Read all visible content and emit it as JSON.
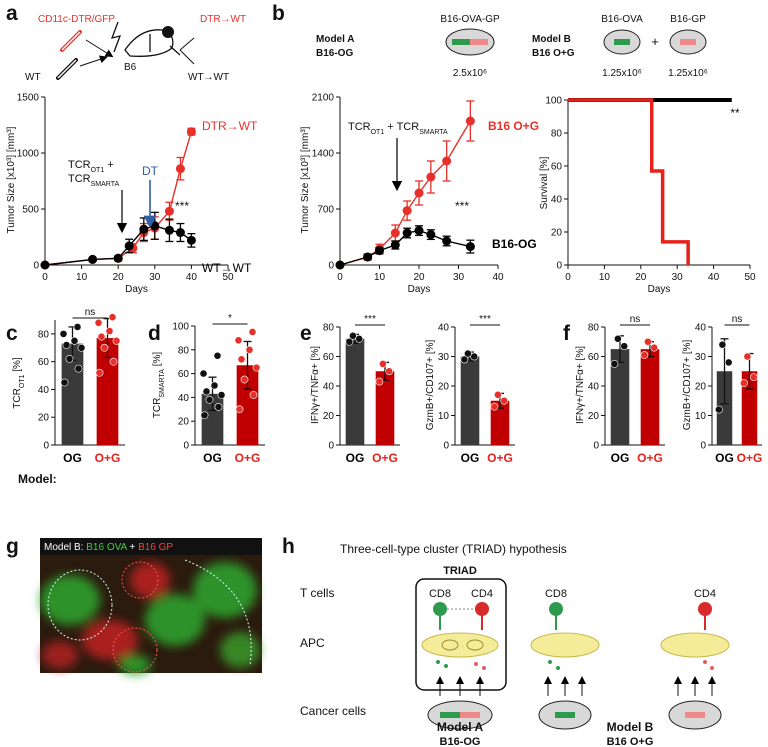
{
  "panel_labels": [
    "a",
    "b",
    "c",
    "d",
    "e",
    "f",
    "g",
    "h"
  ],
  "a_diagram": {
    "donor": "CD11c-DTR/GFP",
    "group1": "DTR→WT",
    "wt": "WT",
    "host": "B6",
    "group2": "WT→WT"
  },
  "b_diagram": {
    "model_a": "Model A",
    "model_a_line": "B16-OG",
    "model_a_cells": "B16-OVA-GP",
    "model_a_dose": "2.5x10⁶",
    "model_b": "Model B",
    "model_b_line": "B16 O+G",
    "model_b_cells1": "B16-OVA",
    "plus": "+",
    "model_b_cells2": "B16-GP",
    "model_b_dose1": "1.25x10⁶",
    "model_b_dose2": "1.25x10⁶"
  },
  "model_row_label": "Model:",
  "chart_data": [
    {
      "type": "line",
      "xlabel": "Days",
      "ylabel": [
        "Tumor Size [x10³] [mm³]"
      ],
      "xlim": [
        0,
        50
      ],
      "xticks": [
        0,
        10,
        20,
        30,
        40,
        50
      ],
      "ylim": [
        0,
        1500
      ],
      "yticks": [
        0,
        500,
        1000,
        1500
      ],
      "treatment": [
        [
          "TCR",
          "OT1",
          " +"
        ],
        [
          "TCR",
          "SMARTA"
        ]
      ],
      "extra_label": "DT",
      "significance": "***",
      "series": [
        {
          "name": "DTR→WT",
          "color": "#e8302a",
          "x": [
            0,
            13,
            20,
            24,
            27,
            30,
            34,
            37,
            40
          ],
          "values": [
            0,
            50,
            60,
            150,
            290,
            330,
            480,
            860,
            1190
          ],
          "errors": [
            0,
            15,
            20,
            40,
            80,
            100,
            80,
            100,
            30
          ]
        },
        {
          "name": "WT→WT",
          "color": "#000000",
          "x": [
            0,
            13,
            20,
            23,
            27,
            30,
            34,
            37,
            40
          ],
          "values": [
            0,
            50,
            60,
            170,
            320,
            350,
            310,
            290,
            220
          ],
          "errors": [
            0,
            15,
            20,
            60,
            100,
            120,
            100,
            80,
            60
          ]
        }
      ]
    },
    {
      "type": "line",
      "xlabel": "Days",
      "ylabel": [
        "Tumor Size [x10³] [mm³]"
      ],
      "xlim": [
        0,
        40
      ],
      "xticks": [
        0,
        10,
        20,
        30,
        40
      ],
      "ylim": [
        0,
        2100
      ],
      "yticks": [
        0,
        700,
        1400,
        2100
      ],
      "treatment": [
        [
          "TCR",
          "OT1",
          " + TCR",
          "SMARTA"
        ]
      ],
      "significance": "***",
      "series": [
        {
          "name": "B16 O+G",
          "color": "#e8302a",
          "x": [
            0,
            7,
            10,
            14,
            17,
            20,
            23,
            27,
            33
          ],
          "values": [
            0,
            100,
            200,
            400,
            680,
            900,
            1100,
            1300,
            1800
          ],
          "errors": [
            0,
            40,
            60,
            100,
            120,
            150,
            200,
            250,
            250
          ]
        },
        {
          "name": "B16-OG",
          "color": "#000000",
          "x": [
            0,
            7,
            10,
            14,
            17,
            20,
            23,
            27,
            33
          ],
          "values": [
            0,
            100,
            180,
            250,
            400,
            430,
            380,
            300,
            230
          ],
          "errors": [
            0,
            30,
            40,
            50,
            60,
            60,
            60,
            60,
            80
          ]
        }
      ]
    },
    {
      "type": "step",
      "xlabel": "Days",
      "ylabel": [
        "Survival [%]"
      ],
      "xlim": [
        0,
        50
      ],
      "xticks": [
        0,
        10,
        20,
        30,
        40,
        50
      ],
      "ylim": [
        0,
        100
      ],
      "yticks": [
        0,
        20,
        40,
        60,
        80,
        100
      ],
      "significance": "**",
      "series": [
        {
          "color": "#000000",
          "x": [
            0,
            45
          ],
          "values": [
            100,
            100
          ]
        },
        {
          "color": "#e8201a",
          "x": [
            0,
            23,
            26,
            33
          ],
          "values": [
            100,
            57,
            14,
            0
          ]
        }
      ]
    },
    {
      "type": "bar",
      "ylabel": [
        "TCR",
        "OT1",
        " [%]"
      ],
      "ylim": [
        0,
        90
      ],
      "yticks": [
        0,
        20,
        40,
        60,
        80
      ],
      "significance": "ns",
      "categories": [
        "OG",
        "O+G"
      ],
      "category_colors": [
        "#000000",
        "#e8201a"
      ],
      "colors": [
        "#3a3a3a",
        "#c00000"
      ],
      "values": [
        73,
        77
      ],
      "errors": [
        12,
        14
      ],
      "points": [
        [
          45,
          55,
          62,
          70,
          72,
          75,
          80,
          85
        ],
        [
          52,
          60,
          70,
          75,
          78,
          82,
          88,
          92
        ]
      ]
    },
    {
      "type": "bar",
      "ylabel": [
        "TCR",
        "SMARTA",
        " [%]"
      ],
      "ylim": [
        0,
        100
      ],
      "yticks": [
        0,
        20,
        40,
        60,
        80,
        100
      ],
      "significance": "*",
      "categories": [
        "OG",
        "O+G"
      ],
      "category_colors": [
        "#000000",
        "#e8201a"
      ],
      "colors": [
        "#3a3a3a",
        "#c00000"
      ],
      "values": [
        43,
        67
      ],
      "errors": [
        14,
        20
      ],
      "points": [
        [
          25,
          32,
          38,
          42,
          45,
          50,
          60,
          75
        ],
        [
          30,
          42,
          55,
          65,
          72,
          80,
          88,
          95
        ]
      ]
    },
    {
      "type": "bar",
      "ylabel": [
        "IFNγ+/TNFα+ [%]"
      ],
      "ylim": [
        0,
        80
      ],
      "yticks": [
        0,
        20,
        40,
        60,
        80
      ],
      "significance": "***",
      "categories": [
        "OG",
        "O+G"
      ],
      "category_colors": [
        "#000000",
        "#e8201a"
      ],
      "colors": [
        "#3a3a3a",
        "#c00000"
      ],
      "values": [
        72,
        50
      ],
      "errors": [
        3,
        6
      ],
      "points": [
        [
          70,
          72,
          74
        ],
        [
          43,
          50,
          55
        ]
      ]
    },
    {
      "type": "bar",
      "ylabel": [
        "GzmB+/CD107+ [%]"
      ],
      "ylim": [
        0,
        40
      ],
      "yticks": [
        0,
        10,
        20,
        30,
        40
      ],
      "significance": "***",
      "categories": [
        "OG",
        "O+G"
      ],
      "category_colors": [
        "#000000",
        "#e8201a"
      ],
      "colors": [
        "#3a3a3a",
        "#c00000"
      ],
      "values": [
        30,
        15
      ],
      "errors": [
        1.5,
        2.5
      ],
      "points": [
        [
          29,
          30,
          31
        ],
        [
          13,
          15,
          17
        ]
      ]
    },
    {
      "type": "bar",
      "ylabel": [
        "IFNγ+/TNFα+ [%]"
      ],
      "ylim": [
        0,
        80
      ],
      "yticks": [
        0,
        20,
        40,
        60,
        80
      ],
      "significance": "ns",
      "categories": [
        "OG",
        "O+G"
      ],
      "category_colors": [
        "#000000",
        "#e8201a"
      ],
      "colors": [
        "#3a3a3a",
        "#c00000"
      ],
      "values": [
        65,
        65
      ],
      "errors": [
        9,
        5
      ],
      "points": [
        [
          55,
          67,
          72
        ],
        [
          61,
          66,
          70
        ]
      ]
    },
    {
      "type": "bar",
      "ylabel": [
        "GzmB+/CD107+ [%]"
      ],
      "ylim": [
        0,
        40
      ],
      "yticks": [
        0,
        10,
        20,
        30,
        40
      ],
      "significance": "ns",
      "categories": [
        "OG",
        "O+G"
      ],
      "category_colors": [
        "#000000",
        "#e8201a"
      ],
      "colors": [
        "#3a3a3a",
        "#c00000"
      ],
      "values": [
        25,
        25
      ],
      "errors": [
        11,
        6
      ],
      "points": [
        [
          12,
          28,
          34
        ],
        [
          21,
          23,
          30
        ]
      ]
    }
  ],
  "g_caption": {
    "prefix": "Model B: ",
    "green": "B16 OVA",
    "plus": " + ",
    "red": "B16 GP"
  },
  "h_diagram": {
    "title": "Three-cell-type cluster (TRIAD) hypothesis",
    "triad": "TRIAD",
    "t_cells": "T cells",
    "apc": "APC",
    "cancer": "Cancer cells",
    "cd8_a": "CD8",
    "cd4_a": "CD4",
    "cd8_b": "CD8",
    "cd4_b": "CD4",
    "model_a": "Model A",
    "model_a_line": "B16-OG",
    "model_b": "Model B",
    "model_b_line": "B16 O+G"
  }
}
